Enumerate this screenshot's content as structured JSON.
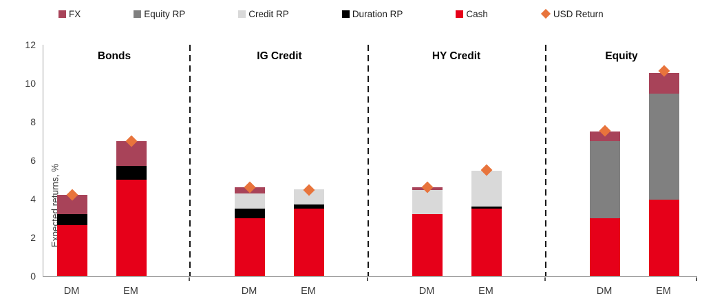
{
  "legend": [
    {
      "label": "FX",
      "color": "#a84359",
      "marker": "square"
    },
    {
      "label": "Equity RP",
      "color": "#808080",
      "marker": "square"
    },
    {
      "label": "Credit RP",
      "color": "#d9d9d9",
      "marker": "square"
    },
    {
      "label": "Duration RP",
      "color": "#000000",
      "marker": "square"
    },
    {
      "label": "Cash",
      "color": "#e60019",
      "marker": "square"
    },
    {
      "label": "USD Return",
      "color": "#e8743c",
      "marker": "diamond"
    }
  ],
  "chart_data": {
    "type": "bar",
    "stacked": true,
    "title": "",
    "xlabel": "",
    "ylabel": "Expected returns, %",
    "ylim": [
      0,
      12
    ],
    "yticks": [
      0,
      2,
      4,
      6,
      8,
      10,
      12
    ],
    "grid": false,
    "legend_position": "top",
    "segment_order": [
      "cash",
      "duration_rp",
      "credit_rp",
      "equity_rp",
      "fx"
    ],
    "segment_colors": {
      "cash": "#e60019",
      "duration_rp": "#000000",
      "credit_rp": "#d9d9d9",
      "equity_rp": "#808080",
      "fx": "#a84359"
    },
    "marker_series": "USD Return",
    "marker_color": "#e8743c",
    "groups": [
      {
        "title": "Bonds",
        "bars": [
          {
            "label": "DM",
            "segments": {
              "cash": 2.65,
              "duration_rp": 0.55,
              "credit_rp": 0,
              "equity_rp": 0,
              "fx": 1.0
            },
            "usd_return": 4.2
          },
          {
            "label": "EM",
            "segments": {
              "cash": 5.0,
              "duration_rp": 0.7,
              "credit_rp": 0,
              "equity_rp": 0,
              "fx": 1.3
            },
            "usd_return": 7.0
          }
        ]
      },
      {
        "title": "IG Credit",
        "bars": [
          {
            "label": "DM",
            "segments": {
              "cash": 3.0,
              "duration_rp": 0.5,
              "credit_rp": 0.8,
              "equity_rp": 0,
              "fx": 0.3
            },
            "usd_return": 4.6
          },
          {
            "label": "EM",
            "segments": {
              "cash": 3.5,
              "duration_rp": 0.2,
              "credit_rp": 0.8,
              "equity_rp": 0,
              "fx": 0
            },
            "usd_return": 4.45
          }
        ]
      },
      {
        "title": "HY Credit",
        "bars": [
          {
            "label": "DM",
            "segments": {
              "cash": 3.2,
              "duration_rp": 0,
              "credit_rp": 1.25,
              "equity_rp": 0,
              "fx": 0.15
            },
            "usd_return": 4.6
          },
          {
            "label": "EM",
            "segments": {
              "cash": 3.5,
              "duration_rp": 0.1,
              "credit_rp": 1.85,
              "equity_rp": 0,
              "fx": 0
            },
            "usd_return": 5.5
          }
        ]
      },
      {
        "title": "Equity",
        "bars": [
          {
            "label": "DM",
            "segments": {
              "cash": 3.0,
              "duration_rp": 0,
              "credit_rp": 0,
              "equity_rp": 4.0,
              "fx": 0.5
            },
            "usd_return": 7.55
          },
          {
            "label": "EM",
            "segments": {
              "cash": 3.95,
              "duration_rp": 0,
              "credit_rp": 0,
              "equity_rp": 5.5,
              "fx": 1.1
            },
            "usd_return": 10.65
          }
        ]
      }
    ]
  }
}
